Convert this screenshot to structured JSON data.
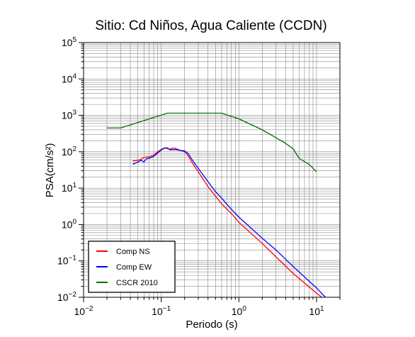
{
  "chart_data": {
    "type": "line",
    "title": "Sitio: Cd Niños, Agua Caliente (CCDN)",
    "xlabel": "Periodo (s)",
    "ylabel": "PSA(cm/s²)",
    "xscale": "log",
    "yscale": "log",
    "xlim": [
      0.01,
      20
    ],
    "ylim": [
      0.01,
      100000
    ],
    "grid": true,
    "legend_position": "bottom-left",
    "x_ticks": [
      {
        "value": 0.01,
        "base": "10",
        "exp": "−2"
      },
      {
        "value": 0.1,
        "base": "10",
        "exp": "−1"
      },
      {
        "value": 1,
        "base": "10",
        "exp": "0"
      },
      {
        "value": 10,
        "base": "10",
        "exp": "1"
      }
    ],
    "y_ticks": [
      {
        "value": 0.01,
        "base": "10",
        "exp": "−2"
      },
      {
        "value": 0.1,
        "base": "10",
        "exp": "−1"
      },
      {
        "value": 1,
        "base": "10",
        "exp": "0"
      },
      {
        "value": 10,
        "base": "10",
        "exp": "1"
      },
      {
        "value": 100,
        "base": "10",
        "exp": "2"
      },
      {
        "value": 1000,
        "base": "10",
        "exp": "3"
      },
      {
        "value": 10000,
        "base": "10",
        "exp": "4"
      },
      {
        "value": 100000,
        "base": "10",
        "exp": "5"
      }
    ],
    "series": [
      {
        "name": "Comp NS",
        "color": "#ff0000",
        "points": [
          [
            0.043,
            56
          ],
          [
            0.05,
            58
          ],
          [
            0.055,
            62
          ],
          [
            0.06,
            70
          ],
          [
            0.07,
            72
          ],
          [
            0.08,
            80
          ],
          [
            0.09,
            100
          ],
          [
            0.1,
            115
          ],
          [
            0.11,
            128
          ],
          [
            0.12,
            122
          ],
          [
            0.13,
            118
          ],
          [
            0.14,
            125
          ],
          [
            0.15,
            125
          ],
          [
            0.17,
            112
          ],
          [
            0.2,
            100
          ],
          [
            0.22,
            80
          ],
          [
            0.25,
            50
          ],
          [
            0.3,
            28
          ],
          [
            0.4,
            11
          ],
          [
            0.5,
            6
          ],
          [
            0.6,
            3.7
          ],
          [
            0.8,
            2
          ],
          [
            1,
            1.15
          ],
          [
            2,
            0.3
          ],
          [
            3,
            0.13
          ],
          [
            5,
            0.045
          ],
          [
            10,
            0.013
          ],
          [
            12,
            0.0095
          ]
        ]
      },
      {
        "name": "Comp EW",
        "color": "#0000ff",
        "points": [
          [
            0.043,
            45
          ],
          [
            0.05,
            52
          ],
          [
            0.055,
            58
          ],
          [
            0.06,
            52
          ],
          [
            0.065,
            65
          ],
          [
            0.07,
            66
          ],
          [
            0.08,
            75
          ],
          [
            0.09,
            92
          ],
          [
            0.1,
            112
          ],
          [
            0.11,
            125
          ],
          [
            0.12,
            128
          ],
          [
            0.13,
            112
          ],
          [
            0.15,
            115
          ],
          [
            0.17,
            110
          ],
          [
            0.2,
            105
          ],
          [
            0.22,
            92
          ],
          [
            0.25,
            60
          ],
          [
            0.3,
            35
          ],
          [
            0.4,
            15
          ],
          [
            0.5,
            8
          ],
          [
            0.6,
            5.3
          ],
          [
            0.8,
            2.6
          ],
          [
            1,
            1.6
          ],
          [
            2,
            0.42
          ],
          [
            3,
            0.2
          ],
          [
            5,
            0.07
          ],
          [
            10,
            0.018
          ],
          [
            13,
            0.01
          ]
        ]
      },
      {
        "name": "CSCR 2010",
        "color": "#007000",
        "points": [
          [
            0.02,
            450
          ],
          [
            0.03,
            450
          ],
          [
            0.12,
            1150
          ],
          [
            0.6,
            1150
          ],
          [
            1,
            800
          ],
          [
            2,
            400
          ],
          [
            4,
            170
          ],
          [
            5,
            120
          ],
          [
            6,
            65
          ],
          [
            8,
            45
          ],
          [
            10,
            28
          ]
        ]
      }
    ]
  }
}
